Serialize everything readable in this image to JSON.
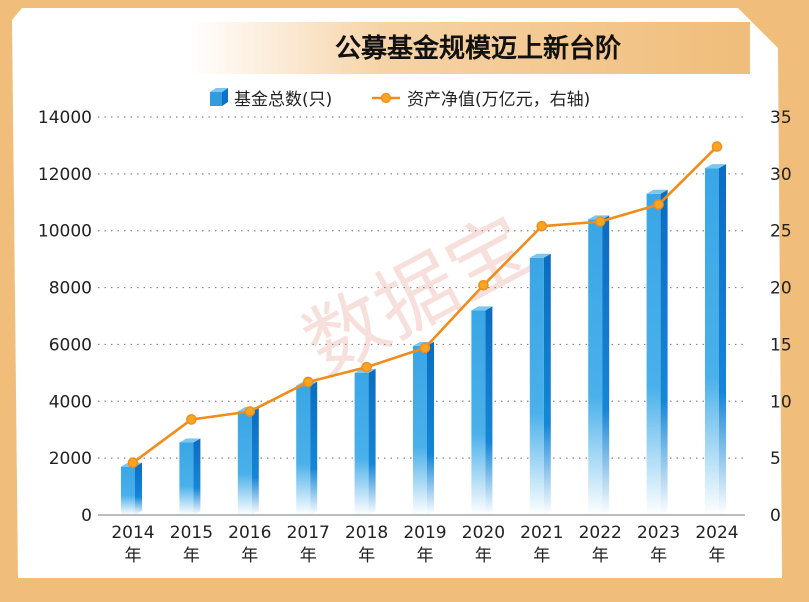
{
  "chart_data": {
    "type": "bar",
    "title": "公募基金规模迈上新台阶",
    "categories": [
      "2014",
      "2015",
      "2016",
      "2017",
      "2018",
      "2019",
      "2020",
      "2021",
      "2022",
      "2023",
      "2024"
    ],
    "category_suffix": "年",
    "series": [
      {
        "name": "基金总数(只)",
        "type": "bar",
        "axis": "left",
        "values": [
          1700,
          2550,
          3650,
          4550,
          5000,
          5950,
          7200,
          9050,
          10400,
          11300,
          12200
        ]
      },
      {
        "name": "资产净值(万亿元，右轴)",
        "type": "line",
        "axis": "right",
        "values": [
          4.6,
          8.4,
          9.1,
          11.7,
          13.0,
          14.7,
          20.2,
          25.4,
          25.8,
          27.3,
          32.4
        ]
      }
    ],
    "y_left": {
      "min": 0,
      "max": 14000,
      "ticks": [
        "0",
        "2000",
        "4000",
        "6000",
        "8000",
        "10000",
        "12000",
        "14000"
      ]
    },
    "y_right": {
      "min": 0,
      "max": 35,
      "ticks": [
        "0",
        "5",
        "10",
        "15",
        "20",
        "25",
        "30",
        "35"
      ]
    },
    "grid": true,
    "legend_position": "top-center",
    "watermark": "数据宝",
    "colors": {
      "bar_front": "#2f9de0",
      "bar_side": "#0d73c7",
      "bar_top": "#7cc6f2",
      "line": "#f08c1a",
      "marker_fill": "#f7a523",
      "frame": "#f0bd7a",
      "panel": "#ffffff"
    }
  }
}
